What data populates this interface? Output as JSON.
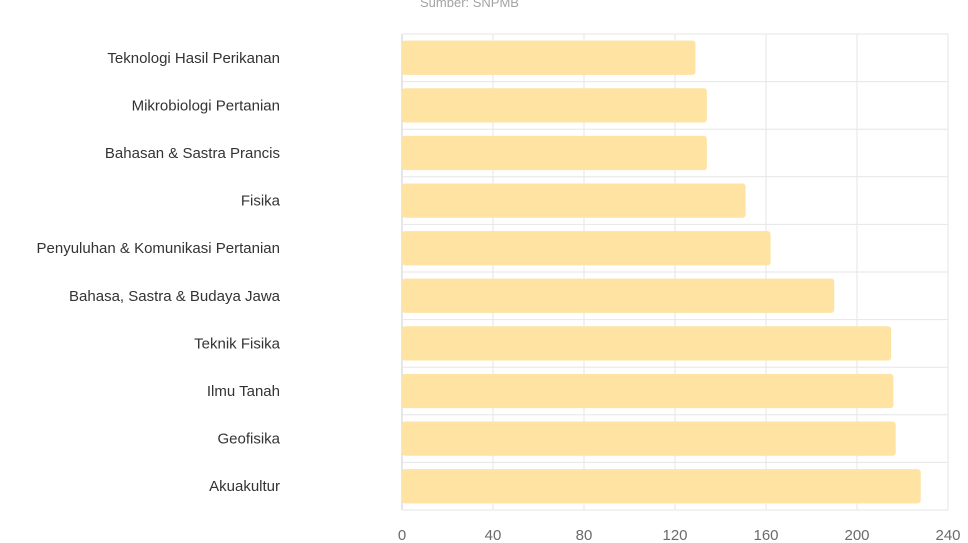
{
  "chart_data": {
    "type": "bar",
    "orientation": "horizontal",
    "source": "Sumber: SNPMB",
    "categories": [
      "Teknologi Hasil Perikanan",
      "Mikrobiologi Pertanian",
      "Bahasan & Sastra Prancis",
      "Fisika",
      "Penyuluhan & Komunikasi Pertanian",
      "Bahasa, Sastra & Budaya Jawa",
      "Teknik Fisika",
      "Ilmu Tanah",
      "Geofisika",
      "Akuakultur"
    ],
    "values": [
      129,
      134,
      134,
      151,
      162,
      190,
      215,
      216,
      217,
      228
    ],
    "xlim": [
      0,
      240
    ],
    "xticks": [
      "0",
      "40",
      "80",
      "120",
      "160",
      "200",
      "240"
    ],
    "grid": true,
    "colors": {
      "bar": "#fee3a2",
      "grid": "#e6e6e6",
      "axis": "#cccccc"
    }
  }
}
